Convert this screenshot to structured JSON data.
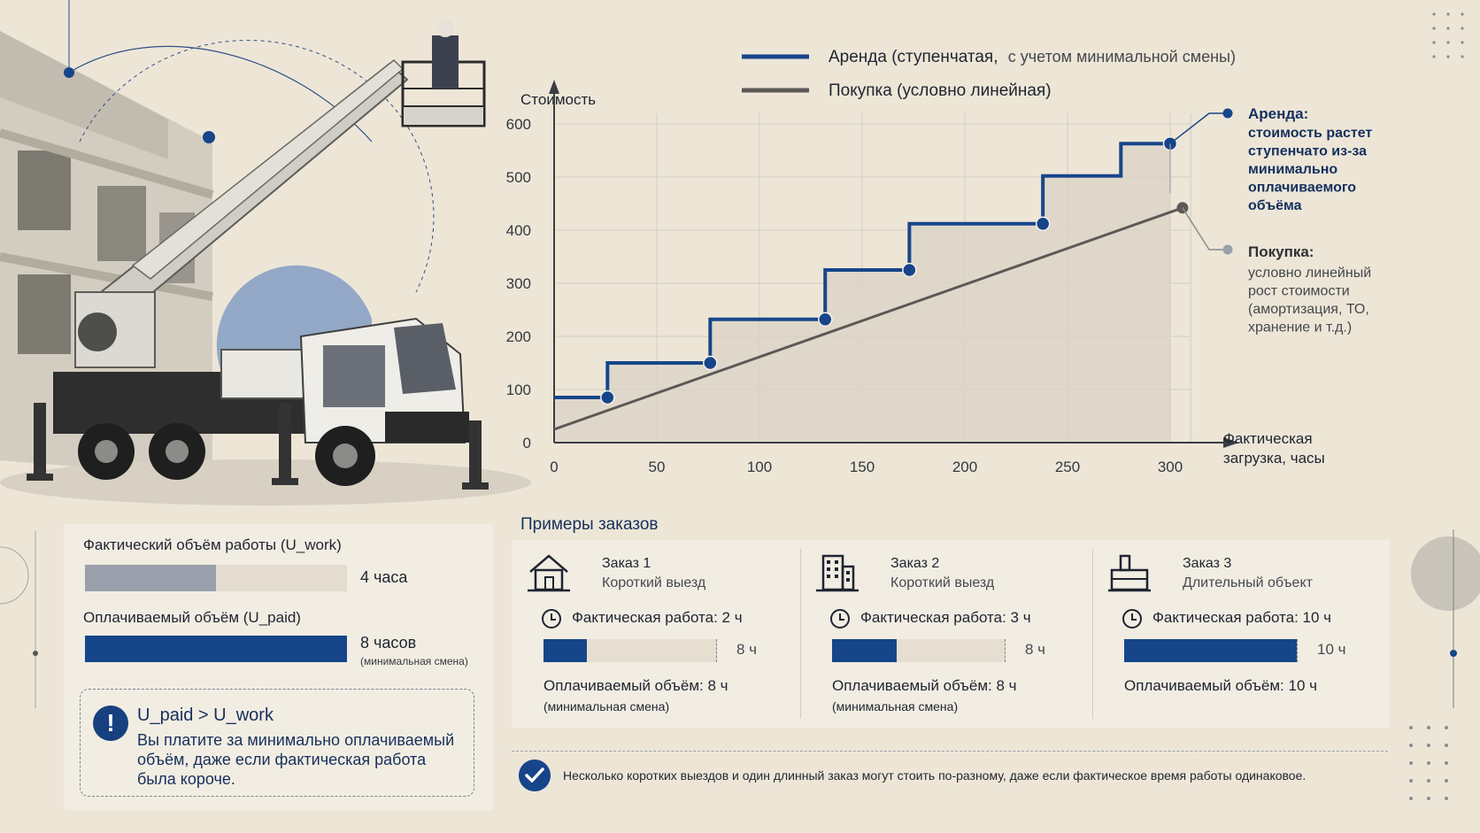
{
  "chart_data": {
    "type": "line",
    "ylabel": "Стоимость",
    "xlabel": "Фактическая загрузка, часы",
    "xlabel_lines": [
      "Фактическая",
      "загрузка, часы"
    ],
    "x_ticks": [
      0,
      50,
      100,
      150,
      200,
      250,
      300
    ],
    "y_ticks": [
      0,
      100,
      200,
      300,
      400,
      500,
      600
    ],
    "xlim": [
      0,
      310
    ],
    "ylim": [
      0,
      600
    ],
    "grid": true,
    "legend_position": "top",
    "series": [
      {
        "name": "Аренда (ступенчатая, с учетом минимальной смены)",
        "legend_label_main": "Аренда (ступенчатая,",
        "legend_label_rest": "с учетом минимальной смены)",
        "color": "#17458a",
        "step_points": [
          [
            0,
            85
          ],
          [
            26,
            85
          ],
          [
            26,
            150
          ],
          [
            76,
            150
          ],
          [
            76,
            232
          ],
          [
            132,
            232
          ],
          [
            132,
            325
          ],
          [
            173,
            325
          ],
          [
            173,
            412
          ],
          [
            238,
            412
          ],
          [
            238,
            502
          ],
          [
            276,
            502
          ],
          [
            276,
            563
          ],
          [
            300,
            563
          ]
        ],
        "markers": [
          [
            26,
            85
          ],
          [
            76,
            150
          ],
          [
            132,
            232
          ],
          [
            173,
            325
          ],
          [
            238,
            412
          ],
          [
            300,
            563
          ]
        ]
      },
      {
        "name": "Покупка (условно линейная)",
        "color": "#5b5856",
        "points": [
          [
            0,
            25
          ],
          [
            306,
            442
          ]
        ],
        "markers": [
          [
            306,
            442
          ]
        ]
      }
    ],
    "annotations": [
      {
        "title": "Аренда:",
        "body": [
          "стоимость растет",
          "ступенчато из-за",
          "минимально",
          "оплачиваемого",
          "объёма"
        ]
      },
      {
        "title": "Покупка:",
        "body": [
          "условно линейный",
          "рост стоимости",
          "(амортизация, ТО,",
          "хранение и т.д.)"
        ]
      }
    ]
  },
  "volume_panel": {
    "work_label": "Фактический объём работы (U_work)",
    "work_value": "4 часа",
    "work_fraction": 0.5,
    "paid_label": "Оплачиваемый объём (U_paid)",
    "paid_value": "8 часов",
    "paid_sub": "(минимальная смена)",
    "paid_fraction": 1.0,
    "warning_title": "U_paid > U_work",
    "warning_body": "Вы платите за минимально оплачиваемый объём, даже если фактическая работа была короче."
  },
  "orders": {
    "title": "Примеры заказов",
    "items": [
      {
        "icon": "house-icon",
        "name": "Заказ 1",
        "type": "Короткий выезд",
        "actual_label": "Фактическая работа:",
        "actual_value": "2 ч",
        "actual_hours": 2,
        "paid_hours": 8,
        "bar_label": "8 ч",
        "paid_text": "Оплачиваемый объём: 8 ч",
        "paid_sub": "(минимальная смена)"
      },
      {
        "icon": "building-icon",
        "name": "Заказ 2",
        "type": "Короткий выезд",
        "actual_label": "Фактическая работа:",
        "actual_value": "3 ч",
        "actual_hours": 3,
        "paid_hours": 8,
        "bar_label": "8 ч",
        "paid_text": "Оплачиваемый объём: 8 ч",
        "paid_sub": "(минимальная смена)"
      },
      {
        "icon": "industrial-building-icon",
        "name": "Заказ 3",
        "type": "Длительный объект",
        "actual_label": "Фактическая работа:",
        "actual_value": "10 ч",
        "actual_hours": 10,
        "paid_hours": 10,
        "bar_label": "10 ч",
        "paid_text": "Оплачиваемый объём: 10 ч",
        "paid_sub": ""
      }
    ]
  },
  "note": {
    "icon": "checkmark-icon",
    "text": "Несколько коротких выездов и один длинный заказ могут стоить по-разному, даже если фактическое время работы одинаковое."
  },
  "colors": {
    "background": "#ede6d7",
    "panel": "#f2ede2",
    "accent_blue": "#17458a",
    "muted_gray": "#9aa0ab",
    "purchase_line": "#5b5856"
  }
}
